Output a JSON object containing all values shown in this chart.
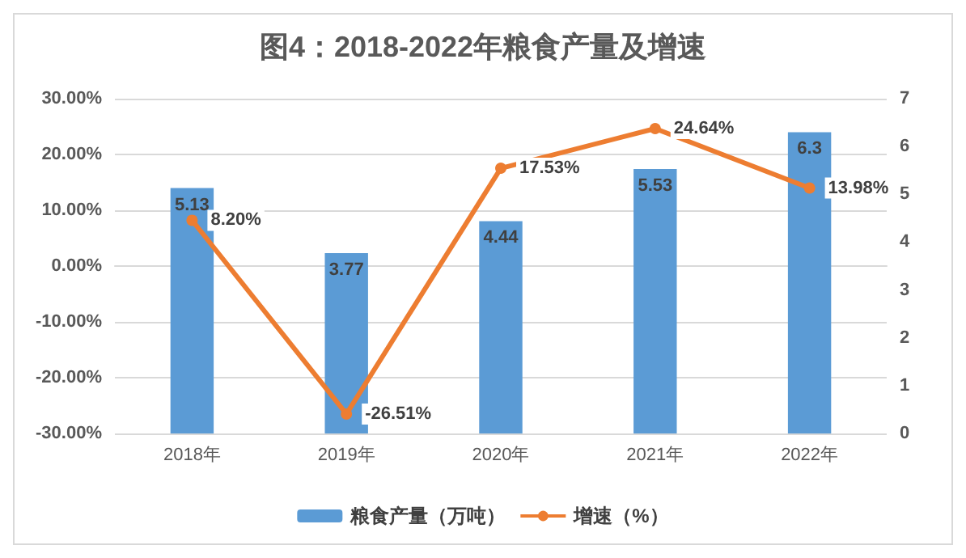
{
  "chart_data": {
    "type": "bar",
    "title": "图4：2018-2022年粮食产量及增速",
    "categories": [
      "2018年",
      "2019年",
      "2020年",
      "2021年",
      "2022年"
    ],
    "series": [
      {
        "name": "粮食产量（万吨）",
        "type": "bar",
        "axis": "y2",
        "color": "#5b9bd5",
        "values": [
          5.13,
          3.77,
          4.44,
          5.53,
          6.3
        ],
        "data_labels": true
      },
      {
        "name": "增速（%）",
        "type": "line",
        "axis": "y",
        "color": "#ed7d31",
        "values": [
          8.2,
          -26.51,
          17.53,
          24.64,
          13.98
        ],
        "value_labels": [
          "8.20%",
          "-26.51%",
          "17.53%",
          "24.64%",
          "13.98%"
        ],
        "marker": "circle"
      }
    ],
    "ylim": [
      -30,
      30
    ],
    "yticks": [
      {
        "value": -30,
        "label": "-30.00%"
      },
      {
        "value": -20,
        "label": "-20.00%"
      },
      {
        "value": -10,
        "label": "-10.00%"
      },
      {
        "value": 0,
        "label": "0.00%"
      },
      {
        "value": 10,
        "label": "10.00%"
      },
      {
        "value": 20,
        "label": "20.00%"
      },
      {
        "value": 30,
        "label": "30.00%"
      }
    ],
    "y2lim": [
      0,
      7
    ],
    "y2ticks": [
      0,
      1,
      2,
      3,
      4,
      5,
      6,
      7
    ],
    "grid": "y",
    "legend": "bottom"
  }
}
